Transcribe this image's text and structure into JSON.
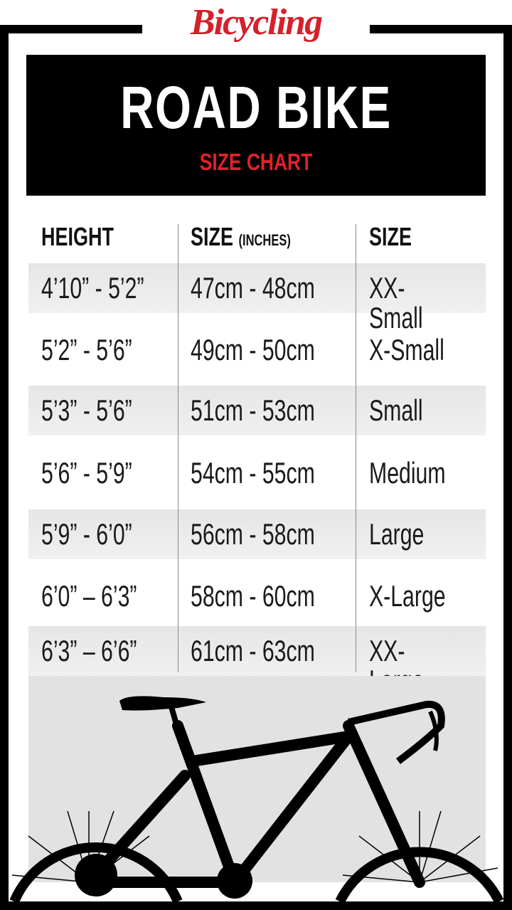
{
  "brand": {
    "logo_text": "Bicycling",
    "color": "#d6202a"
  },
  "header": {
    "title": "ROAD BIKE",
    "subtitle": "SIZE CHART"
  },
  "table": {
    "columns": [
      {
        "label": "HEIGHT",
        "note": ""
      },
      {
        "label": "SIZE",
        "note": "(INCHES)"
      },
      {
        "label": "SIZE",
        "note": ""
      }
    ],
    "rows": [
      [
        "4’10” - 5’2”",
        "47cm - 48cm",
        "XX-Small"
      ],
      [
        "5’2” - 5’6”",
        "49cm - 50cm",
        "X-Small"
      ],
      [
        "5’3” - 5’6”",
        "51cm - 53cm",
        "Small"
      ],
      [
        "5’6” - 5’9”",
        "54cm - 55cm",
        "Medium"
      ],
      [
        "5’9” - 6’0”",
        "56cm - 58cm",
        "Large"
      ],
      [
        "6’0” – 6’3”",
        "58cm - 60cm",
        "X-Large"
      ],
      [
        "6’3” – 6’6”",
        "61cm - 63cm",
        "XX-Large"
      ]
    ]
  },
  "illustration": {
    "icon": "road-bike-silhouette"
  }
}
